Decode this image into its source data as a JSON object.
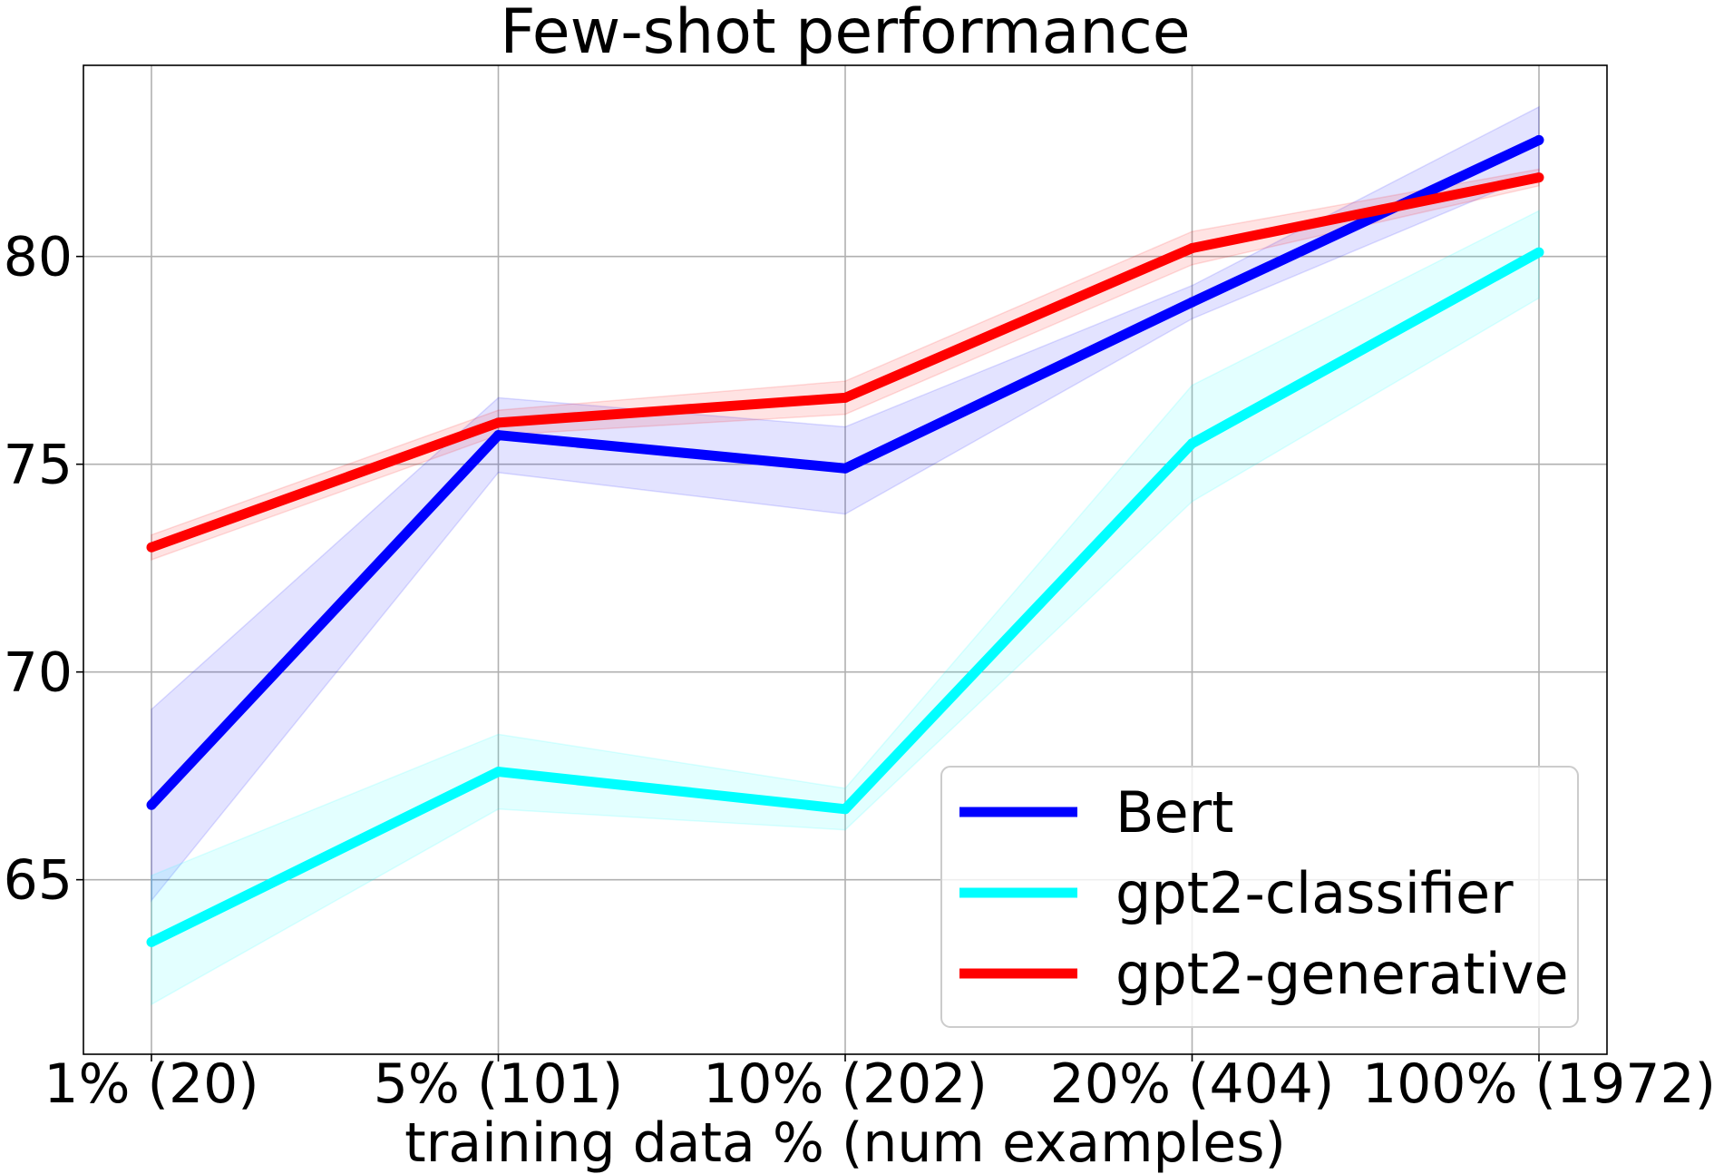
{
  "chart_data": {
    "type": "line",
    "title": "Few-shot performance",
    "xlabel": "training data % (num examples)",
    "ylabel": "",
    "categories": [
      "1% (20)",
      "5% (101)",
      "10% (202)",
      "20% (404)",
      "100% (1972)"
    ],
    "ylim": [
      60.8,
      84.6
    ],
    "yticks": [
      65,
      70,
      75,
      80
    ],
    "grid": true,
    "legend_position": "lower-right",
    "series": [
      {
        "name": "Bert",
        "color": "#0000ff",
        "values": [
          66.8,
          75.7,
          74.9,
          78.9,
          82.8
        ],
        "lower": [
          64.5,
          74.8,
          73.8,
          78.5,
          82.0
        ],
        "upper": [
          69.1,
          76.6,
          75.9,
          79.3,
          83.6
        ]
      },
      {
        "name": "gpt2-classifier",
        "color": "#00ffff",
        "values": [
          63.5,
          67.6,
          66.7,
          75.5,
          80.1
        ],
        "lower": [
          62.0,
          66.7,
          66.2,
          74.1,
          79.0
        ],
        "upper": [
          65.1,
          68.5,
          67.2,
          76.9,
          81.1
        ]
      },
      {
        "name": "gpt2-generative",
        "color": "#ff0000",
        "values": [
          73.0,
          76.0,
          76.6,
          80.2,
          81.9
        ],
        "lower": [
          72.7,
          75.7,
          76.2,
          79.8,
          81.7
        ],
        "upper": [
          73.3,
          76.3,
          77.0,
          80.6,
          82.1
        ]
      }
    ]
  }
}
